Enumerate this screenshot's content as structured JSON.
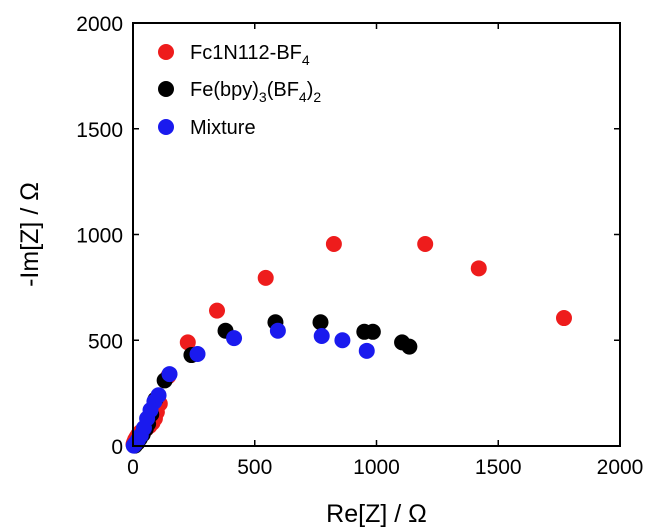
{
  "chart_data": {
    "type": "scatter",
    "xlabel": "Re[Z] / Ω",
    "ylabel": "-Im[Z] / Ω",
    "xlim": [
      0,
      2000
    ],
    "ylim": [
      0,
      2000
    ],
    "xticks": [
      "0",
      "500",
      "1000",
      "1500",
      "2000"
    ],
    "yticks": [
      "0",
      "500",
      "1000",
      "1500",
      "2000"
    ],
    "x_tick_values": [
      0,
      500,
      1000,
      1500,
      2000
    ],
    "y_tick_values": [
      0,
      500,
      1000,
      1500,
      2000
    ],
    "grid": false,
    "legend_position": "top-left",
    "series": [
      {
        "name": "Fc1N112-BF4",
        "legend_main": "Fc1N112-BF",
        "legend_sub": "4",
        "color": "#ee1c1c",
        "x": [
          2,
          5,
          9,
          15,
          22,
          30,
          42,
          55,
          68,
          80,
          90,
          98,
          110,
          145,
          225,
          345,
          545,
          825,
          1200,
          1420,
          1770
        ],
        "y": [
          8,
          18,
          30,
          42,
          55,
          65,
          72,
          82,
          95,
          110,
          130,
          160,
          200,
          330,
          490,
          640,
          795,
          955,
          955,
          840,
          605
        ]
      },
      {
        "name": "Fe(bpy)3(BF4)2",
        "legend_parts": [
          "Fe(bpy)",
          "3",
          "(BF",
          "4",
          ")",
          "2"
        ],
        "color": "#000000",
        "x": [
          8,
          18,
          28,
          40,
          52,
          62,
          75,
          92,
          130,
          240,
          380,
          585,
          770,
          950,
          985,
          1105,
          1135
        ],
        "y": [
          2,
          15,
          35,
          55,
          80,
          105,
          150,
          220,
          310,
          430,
          545,
          585,
          585,
          540,
          540,
          490,
          470
        ]
      },
      {
        "name": "Mixture",
        "color": "#1a1aee",
        "x": [
          3,
          10,
          20,
          32,
          45,
          58,
          72,
          88,
          105,
          150,
          265,
          415,
          595,
          775,
          860,
          960
        ],
        "y": [
          2,
          12,
          28,
          50,
          85,
          130,
          170,
          210,
          240,
          340,
          435,
          510,
          545,
          520,
          500,
          450
        ]
      }
    ]
  }
}
